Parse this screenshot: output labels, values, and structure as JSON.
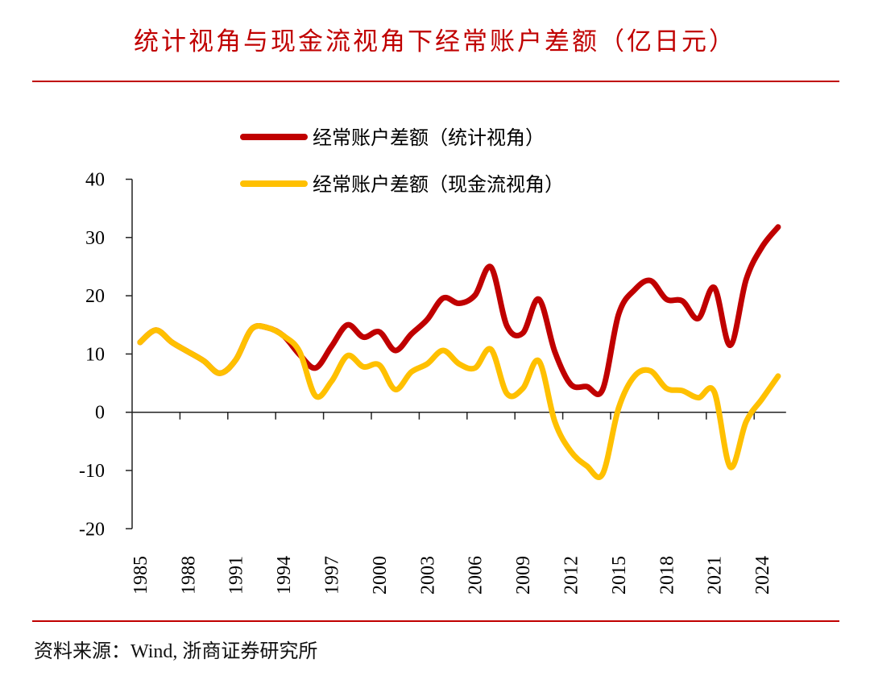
{
  "title": "统计视角与现金流视角下经常账户差额（亿日元）",
  "source": "资料来源：Wind, 浙商证券研究所",
  "chart_data": {
    "type": "line",
    "title": "统计视角与现金流视角下经常账户差额（亿日元）",
    "xlabel": "",
    "ylabel": "",
    "ylim": [
      -20,
      40
    ],
    "yticks": [
      -20,
      -10,
      0,
      10,
      20,
      30,
      40
    ],
    "x": [
      1985,
      1986,
      1987,
      1988,
      1989,
      1990,
      1991,
      1992,
      1993,
      1994,
      1995,
      1996,
      1997,
      1998,
      1999,
      2000,
      2001,
      2002,
      2003,
      2004,
      2005,
      2006,
      2007,
      2008,
      2009,
      2010,
      2011,
      2012,
      2013,
      2014,
      2015,
      2016,
      2017,
      2018,
      2019,
      2020,
      2021,
      2022,
      2023,
      2024,
      2025
    ],
    "xtick_labels": [
      "1985",
      "1988",
      "1991",
      "1994",
      "1997",
      "2000",
      "2003",
      "2006",
      "2009",
      "2012",
      "2015",
      "2018",
      "2021",
      "2024"
    ],
    "legend_position": "top",
    "grid": false,
    "series": [
      {
        "name": "经常账户差额（统计视角）",
        "color": "#C00000",
        "values": [
          12.0,
          14.1,
          12.0,
          10.4,
          8.8,
          6.7,
          9.0,
          14.3,
          14.5,
          13.1,
          9.9,
          7.6,
          11.3,
          15.0,
          12.9,
          13.8,
          10.6,
          13.4,
          15.9,
          19.6,
          18.7,
          20.1,
          24.9,
          14.8,
          13.6,
          19.4,
          10.4,
          4.8,
          4.4,
          3.9,
          16.8,
          21.0,
          22.6,
          19.4,
          19.1,
          16.1,
          21.4,
          11.5,
          22.8,
          28.4,
          31.8
        ]
      },
      {
        "name": "经常账户差额（现金流视角）",
        "color": "#FFC000",
        "values": [
          12.0,
          14.1,
          12.0,
          10.4,
          8.8,
          6.7,
          9.0,
          14.3,
          14.5,
          13.1,
          10.4,
          2.8,
          5.3,
          9.7,
          7.8,
          8.1,
          3.9,
          6.9,
          8.3,
          10.6,
          8.3,
          7.6,
          10.8,
          3.2,
          4.1,
          8.8,
          -1.6,
          -6.7,
          -9.2,
          -10.6,
          0.7,
          6.2,
          7.1,
          4.1,
          3.7,
          2.5,
          3.5,
          -9.4,
          -1.6,
          2.3,
          6.2
        ]
      }
    ]
  }
}
